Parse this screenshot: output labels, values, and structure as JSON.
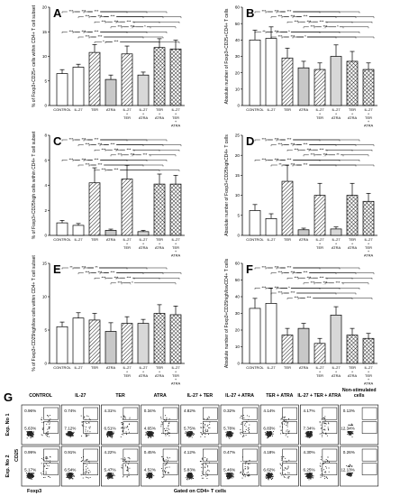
{
  "chart_data": [
    {
      "panel": "A",
      "type": "bar",
      "ylabel": "% of Foxp3+CD25+ cells within CD4+ T cell subset",
      "categories": [
        "CONTROL",
        "IL-27",
        "TER",
        "ATRA",
        "IL-27 + TER",
        "IL-27 + ATRA",
        "TER + ATRA",
        "IL-27 + TER + ATRA"
      ],
      "values": [
        6.5,
        7.8,
        10.8,
        5.3,
        10.5,
        6.2,
        11.8,
        11.5
      ],
      "errors": [
        0.8,
        0.6,
        1.6,
        0.9,
        1.6,
        0.6,
        1.8,
        1.8
      ],
      "ylim": [
        0,
        20
      ],
      "yticks": [
        0,
        5,
        10,
        15,
        20
      ],
      "sig": [
        "***",
        "***",
        "***",
        "***",
        "***",
        "***",
        "*",
        "***",
        "***",
        "***",
        "***",
        "***",
        "***",
        "***",
        "***",
        "***",
        "***",
        "*",
        "***"
      ]
    },
    {
      "panel": "B",
      "type": "bar",
      "ylabel": "Absolute number of Foxp3+CD25+CD4+ T cells",
      "categories": [
        "CONTROL",
        "IL-27",
        "TER",
        "ATRA",
        "IL-27 + TER",
        "IL-27 + ATRA",
        "TER + ATRA",
        "IL-27 + TER + ATRA"
      ],
      "values": [
        40,
        41,
        29,
        23,
        22,
        30,
        27,
        22
      ],
      "errors": [
        6,
        7,
        6,
        4,
        4,
        7,
        6,
        4
      ],
      "ylim": [
        0,
        60
      ],
      "yticks": [
        0,
        10,
        20,
        30,
        40,
        50,
        60
      ],
      "sig": [
        "***",
        "***",
        "***",
        "***",
        "**",
        "***",
        "***",
        "***",
        "***",
        "***",
        "***",
        "***",
        "***",
        "***",
        "***",
        "*",
        "*",
        "*"
      ]
    },
    {
      "panel": "C",
      "type": "bar",
      "ylabel": "% of Foxp3+CD25high cells within CD4+ T cell subset",
      "categories": [
        "CONTROL",
        "IL-27",
        "TER",
        "ATRA",
        "IL-27 + TER",
        "IL-27 + ATRA",
        "TER + ATRA",
        "IL-27 + TER + ATRA"
      ],
      "values": [
        1.0,
        0.8,
        4.2,
        0.4,
        4.5,
        0.3,
        4.1,
        4.1
      ],
      "errors": [
        0.2,
        0.15,
        1.2,
        0.1,
        1.1,
        0.1,
        0.8,
        0.7
      ],
      "ylim": [
        0,
        8
      ],
      "yticks": [
        0,
        2,
        4,
        6,
        8
      ],
      "sig": [
        "***",
        "***",
        "***",
        "***",
        "***",
        "***",
        "***",
        "***",
        "***",
        "***",
        "***",
        "***",
        "***",
        "***",
        "***",
        "***",
        "***",
        "***",
        "***"
      ]
    },
    {
      "panel": "D",
      "type": "bar",
      "ylabel": "Absolute number of Foxp3+CD25highCD4+ T cells",
      "categories": [
        "CONTROL",
        "IL-27",
        "TER",
        "ATRA",
        "IL-27 + TER",
        "IL-27 + ATRA",
        "TER + ATRA",
        "IL-27 + TER + ATRA"
      ],
      "values": [
        6.2,
        4.2,
        13.5,
        1.4,
        10.0,
        1.6,
        10.0,
        8.5
      ],
      "errors": [
        1.5,
        1.2,
        4.0,
        0.4,
        3.0,
        0.5,
        3.0,
        2.0
      ],
      "ylim": [
        0,
        25
      ],
      "yticks": [
        0,
        5,
        10,
        15,
        20,
        25
      ],
      "sig": [
        "***",
        "***",
        "***",
        "***",
        "***",
        "**",
        "***",
        "***",
        "***",
        "***",
        "***",
        "***",
        "***",
        "***",
        "***",
        "**",
        "***",
        "***"
      ]
    },
    {
      "panel": "E",
      "type": "bar",
      "ylabel": "% of Foxp3+CD25high/low cells within CD4+ T cell subset",
      "categories": [
        "CONTROL",
        "IL-27",
        "TER",
        "ATRA",
        "IL-27 + TER",
        "IL-27 + ATRA",
        "TER + ATRA",
        "IL-27 + TER + ATRA"
      ],
      "values": [
        5.5,
        6.8,
        6.5,
        4.8,
        6.0,
        6.0,
        7.5,
        7.3
      ],
      "errors": [
        0.7,
        0.8,
        1.0,
        1.3,
        1.0,
        0.6,
        1.3,
        1.3
      ],
      "ylim": [
        0,
        15
      ],
      "yticks": [
        0,
        5,
        10,
        15
      ],
      "sig": [
        "**",
        "***",
        "***",
        "***",
        "***",
        "***",
        "***",
        "*",
        "**",
        "***",
        "***"
      ]
    },
    {
      "panel": "F",
      "type": "bar",
      "ylabel": "Absolute number of Foxp3+CD25high/lowCD4+ T cells",
      "categories": [
        "CONTROL",
        "IL-27",
        "TER",
        "ATRA",
        "IL-27 + TER",
        "IL-27 + ATRA",
        "TER + ATRA",
        "IL-27 + TER + ATRA"
      ],
      "values": [
        33,
        36,
        17,
        21,
        12,
        29,
        17,
        15
      ],
      "errors": [
        6,
        9,
        4,
        3,
        3,
        5,
        4,
        3
      ],
      "ylim": [
        0,
        60
      ],
      "yticks": [
        0,
        10,
        20,
        30,
        40,
        50,
        60
      ],
      "sig": [
        "***",
        "***",
        "***",
        "***",
        "***",
        "***",
        "***",
        "***",
        "***",
        "***",
        "***",
        "***",
        "***",
        "***",
        "***",
        "***",
        "***",
        "***",
        "*"
      ]
    }
  ],
  "flow": {
    "letter": "G",
    "conditions": [
      "CONTROL",
      "IL-27",
      "TER",
      "ATRA",
      "IL-27 + TER",
      "IL-27 + ATRA",
      "TER + ATRA",
      "IL-27 + TER + ATRA",
      "Non-stimulated cells"
    ],
    "rows": [
      {
        "label": "Exp. No 1",
        "upper": [
          "0.96%",
          "0.74%",
          "4.31%",
          "0.34%",
          "4.82%",
          "0.32%",
          "4.14%",
          "4.17%",
          "0.13%"
        ],
        "lower": [
          "5.63%",
          "7.12%",
          "6.51%",
          "4.65%",
          "5.75%",
          "5.78%",
          "6.83%",
          "7.34%",
          "12.34%"
        ]
      },
      {
        "label": "Exp. No 2",
        "upper": [
          "0.99%",
          "0.91%",
          "4.22%",
          "0.45%",
          "4.12%",
          "0.47%",
          "4.18%",
          "4.30%",
          "0.26%"
        ],
        "lower": [
          "5.17%",
          "6.54%",
          "5.47%",
          "4.52%",
          "5.83%",
          "5.46%",
          "6.62%",
          "6.25%",
          "12.13%"
        ]
      }
    ],
    "y_axis": "CD25",
    "x_axis": "Foxp3",
    "gate_label": "Gated on CD4+ T cells"
  }
}
